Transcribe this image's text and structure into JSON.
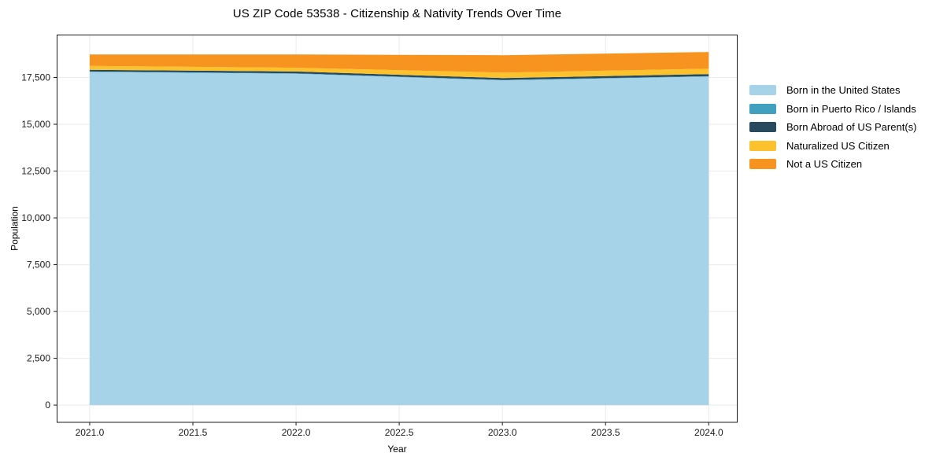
{
  "figure": {
    "background": "#ffffff"
  },
  "chart_data": {
    "type": "area",
    "stacked": true,
    "title": "US ZIP Code 53538 - Citizenship & Nativity Trends Over Time",
    "xlabel": "Year",
    "ylabel": "Population",
    "x": [
      2021,
      2022,
      2023,
      2024
    ],
    "series": [
      {
        "name": "Born in the United States",
        "color": "#a6d3e8",
        "values": [
          17800,
          17700,
          17350,
          17550
        ]
      },
      {
        "name": "Born in Puerto Rico / Islands",
        "color": "#3fa0c0",
        "values": [
          20,
          20,
          20,
          20
        ]
      },
      {
        "name": "Born Abroad of US Parent(s)",
        "color": "#274a5f",
        "values": [
          90,
          100,
          100,
          110
        ]
      },
      {
        "name": "Naturalized US Citizen",
        "color": "#fcc22d",
        "values": [
          210,
          200,
          290,
          290
        ]
      },
      {
        "name": "Not a US Citizen",
        "color": "#f7941f",
        "values": [
          610,
          710,
          930,
          890
        ]
      }
    ],
    "totals": [
      18730,
      18730,
      18690,
      18860
    ],
    "xticks": [
      2021.0,
      2021.5,
      2022.0,
      2022.5,
      2023.0,
      2023.5,
      2024.0
    ],
    "xtick_labels": [
      "2021.0",
      "2021.5",
      "2022.0",
      "2022.5",
      "2023.0",
      "2023.5",
      "2024.0"
    ],
    "yticks": [
      0,
      2500,
      5000,
      7500,
      10000,
      12500,
      15000,
      17500
    ],
    "ytick_labels": [
      "0",
      "2,500",
      "5,000",
      "7,500",
      "10,000",
      "12,500",
      "15,000",
      "17,500"
    ],
    "xlim": [
      2020.84,
      2024.14
    ],
    "ylim": [
      -920,
      19790
    ],
    "grid": true,
    "legend_position": "right",
    "axis_color": "#1a1a1a",
    "grid_color": "#e9e9e9",
    "tick_label_color": "#1a1a1a"
  }
}
